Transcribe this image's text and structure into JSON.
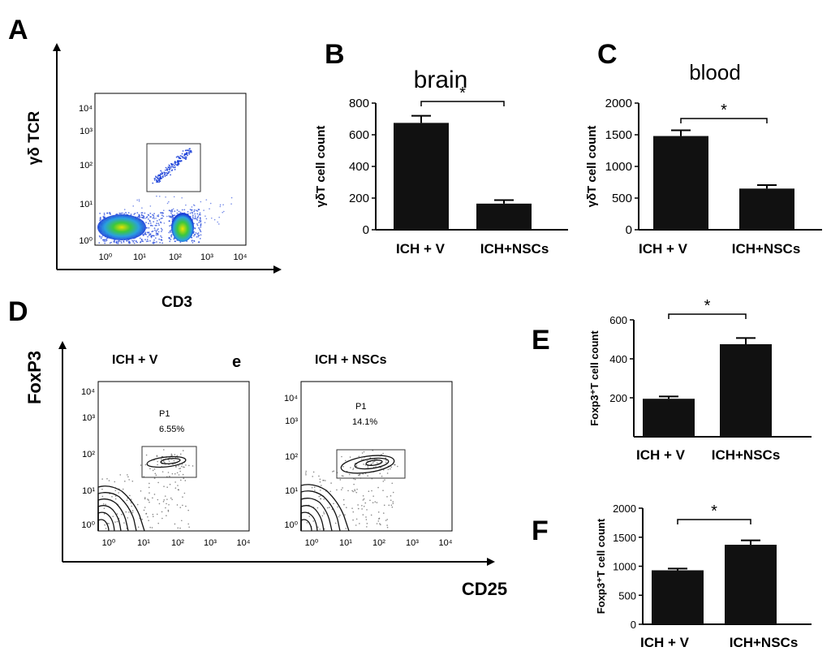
{
  "panel_letters": {
    "a": "A",
    "b": "B",
    "c": "C",
    "d": "D",
    "e": "E",
    "f": "F"
  },
  "colors": {
    "bar": "#111111",
    "scatter": "#1a3fd8",
    "scatter_hot": "#3cc83c",
    "scatter_core": "#e8e000",
    "dots": "#555555"
  },
  "flow": {
    "a": {
      "ylabel": "γδ TCR",
      "xlabel": "CD3",
      "ticks": [
        "10⁰",
        "10¹",
        "10²",
        "10³",
        "10⁴"
      ]
    },
    "d": {
      "ylabel": "FoxP3",
      "xlabel": "CD25",
      "ticks": [
        "10⁰",
        "10¹",
        "10²",
        "10³",
        "10⁴"
      ],
      "stray": "e",
      "plots": [
        {
          "title": "ICH + V",
          "gate": "P1",
          "percent": "6.55%"
        },
        {
          "title": "ICH + NSCs",
          "gate": "P1",
          "percent": "14.1%"
        }
      ]
    }
  },
  "chart_data": [
    {
      "panel": "B",
      "type": "bar",
      "title": "brain",
      "ylabel": "γδT cell count",
      "xlabel": "",
      "categories": [
        "ICH + V",
        "ICH+NSCs"
      ],
      "values": [
        675,
        165
      ],
      "errors": [
        45,
        22
      ],
      "ylim": [
        0,
        800
      ],
      "yticks": [
        0,
        200,
        400,
        600,
        800
      ],
      "significance": "*",
      "grid": false
    },
    {
      "panel": "C",
      "type": "bar",
      "title": "blood",
      "ylabel": "γδT cell count",
      "xlabel": "",
      "categories": [
        "ICH + V",
        "ICH+NSCs"
      ],
      "values": [
        1480,
        650
      ],
      "errors": [
        90,
        55
      ],
      "ylim": [
        0,
        2000
      ],
      "yticks": [
        0,
        500,
        1000,
        1500,
        2000
      ],
      "significance": "*",
      "grid": false
    },
    {
      "panel": "E",
      "type": "bar",
      "title": "",
      "ylabel": "Foxp3⁺T cell count",
      "xlabel": "",
      "categories": [
        "ICH + V",
        "ICH+NSCs"
      ],
      "values": [
        195,
        475
      ],
      "errors": [
        12,
        32
      ],
      "ylim": [
        0,
        600
      ],
      "yticks": [
        200,
        400,
        600
      ],
      "significance": "*",
      "grid": false
    },
    {
      "panel": "F",
      "type": "bar",
      "title": "",
      "ylabel": "Foxp3⁺T cell count",
      "xlabel": "",
      "categories": [
        "ICH + V",
        "ICH+NSCs"
      ],
      "values": [
        930,
        1370
      ],
      "errors": [
        30,
        75
      ],
      "ylim": [
        0,
        2000
      ],
      "yticks": [
        0,
        500,
        1000,
        1500,
        2000
      ],
      "significance": "*",
      "grid": false
    }
  ]
}
